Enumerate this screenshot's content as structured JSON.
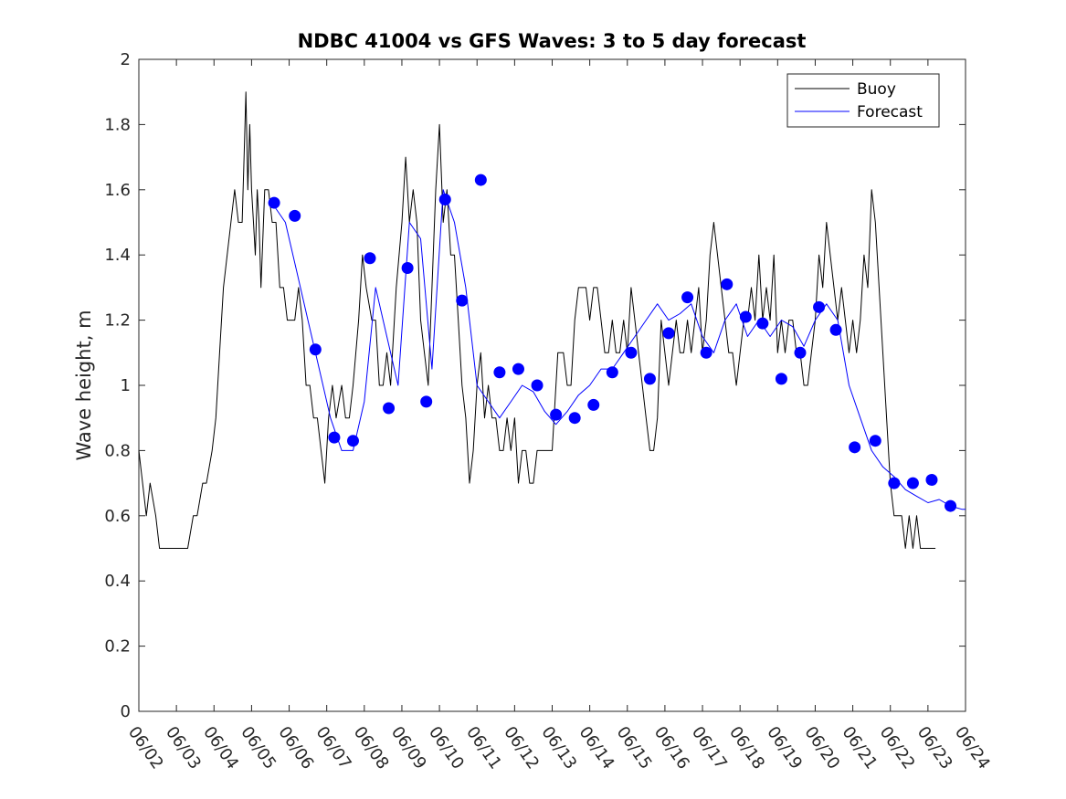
{
  "chart_data": {
    "type": "line",
    "title": "NDBC 41004 vs GFS Waves: 3 to 5 day forecast",
    "xlabel": "",
    "ylabel": "Wave height, m",
    "x_tick_labels": [
      "06/02",
      "06/03",
      "06/04",
      "06/05",
      "06/06",
      "06/07",
      "06/08",
      "06/09",
      "06/10",
      "06/11",
      "06/12",
      "06/13",
      "06/14",
      "06/15",
      "06/16",
      "06/17",
      "06/18",
      "06/19",
      "06/20",
      "06/21",
      "06/22",
      "06/23",
      "06/24"
    ],
    "xlim": [
      0,
      22
    ],
    "ylim": [
      0,
      2
    ],
    "y_ticks": [
      0,
      0.2,
      0.4,
      0.6,
      0.8,
      1,
      1.2,
      1.4,
      1.6,
      1.8,
      2
    ],
    "y_tick_labels": [
      "0",
      "0.2",
      "0.4",
      "0.6",
      "0.8",
      "1",
      "1.2",
      "1.4",
      "1.6",
      "1.8",
      "2"
    ],
    "x_unit_note": "x values are days after 06/02",
    "grid": false,
    "legend": {
      "position": "top-right",
      "entries": [
        {
          "name": "Buoy",
          "color": "#000000"
        },
        {
          "name": "Forecast",
          "color": "#0000ff"
        }
      ]
    },
    "series": [
      {
        "name": "Buoy",
        "color": "#000000",
        "style": "line",
        "x": [
          0,
          0.1,
          0.2,
          0.3,
          0.45,
          0.55,
          0.6,
          0.7,
          1.0,
          1.3,
          1.45,
          1.55,
          1.7,
          1.8,
          1.95,
          2.05,
          2.15,
          2.25,
          2.35,
          2.45,
          2.55,
          2.65,
          2.75,
          2.8,
          2.85,
          2.9,
          2.95,
          3.0,
          3.05,
          3.1,
          3.15,
          3.2,
          3.25,
          3.35,
          3.45,
          3.55,
          3.65,
          3.75,
          3.85,
          3.95,
          4.05,
          4.15,
          4.25,
          4.35,
          4.45,
          4.55,
          4.65,
          4.75,
          4.85,
          4.95,
          5.05,
          5.15,
          5.25,
          5.4,
          5.5,
          5.6,
          5.7,
          5.85,
          5.95,
          6.05,
          6.2,
          6.3,
          6.4,
          6.5,
          6.6,
          6.7,
          6.85,
          7.0,
          7.1,
          7.2,
          7.3,
          7.4,
          7.5,
          7.6,
          7.7,
          7.8,
          7.9,
          8.0,
          8.1,
          8.2,
          8.3,
          8.4,
          8.5,
          8.6,
          8.7,
          8.8,
          8.9,
          9.0,
          9.1,
          9.2,
          9.3,
          9.4,
          9.5,
          9.6,
          9.7,
          9.8,
          9.9,
          10.0,
          10.1,
          10.2,
          10.3,
          10.4,
          10.5,
          10.6,
          10.7,
          10.8,
          10.9,
          11.0,
          11.15,
          11.3,
          11.4,
          11.5,
          11.6,
          11.7,
          11.8,
          11.9,
          12.0,
          12.1,
          12.2,
          12.3,
          12.4,
          12.5,
          12.6,
          12.7,
          12.8,
          12.9,
          13.0,
          13.1,
          13.2,
          13.3,
          13.4,
          13.5,
          13.6,
          13.7,
          13.8,
          13.9,
          14.0,
          14.1,
          14.2,
          14.3,
          14.4,
          14.5,
          14.6,
          14.7,
          14.8,
          14.9,
          15.0,
          15.1,
          15.2,
          15.3,
          15.4,
          15.5,
          15.6,
          15.7,
          15.8,
          15.9,
          16.0,
          16.1,
          16.2,
          16.3,
          16.4,
          16.5,
          16.6,
          16.7,
          16.8,
          16.9,
          17.0,
          17.1,
          17.2,
          17.3,
          17.4,
          17.5,
          17.6,
          17.7,
          17.8,
          17.9,
          18.0,
          18.1,
          18.2,
          18.3,
          18.4,
          18.5,
          18.6,
          18.7,
          18.8,
          18.9,
          19.0,
          19.1,
          19.2,
          19.3,
          19.4,
          19.5,
          19.6,
          19.7,
          19.8,
          19.9,
          20.0,
          20.1,
          20.2,
          20.3,
          20.4,
          20.5,
          20.6,
          20.7,
          20.8,
          20.9,
          21.0,
          21.1,
          21.2
        ],
        "y": [
          0.8,
          0.7,
          0.6,
          0.7,
          0.6,
          0.5,
          0.5,
          0.5,
          0.5,
          0.5,
          0.6,
          0.6,
          0.7,
          0.7,
          0.8,
          0.9,
          1.1,
          1.3,
          1.4,
          1.5,
          1.6,
          1.5,
          1.5,
          1.7,
          1.9,
          1.6,
          1.8,
          1.6,
          1.5,
          1.4,
          1.6,
          1.5,
          1.3,
          1.6,
          1.6,
          1.5,
          1.5,
          1.3,
          1.3,
          1.2,
          1.2,
          1.2,
          1.3,
          1.2,
          1.0,
          1.0,
          0.9,
          0.9,
          0.8,
          0.7,
          0.9,
          1.0,
          0.9,
          1.0,
          0.9,
          0.9,
          1.0,
          1.2,
          1.4,
          1.3,
          1.2,
          1.2,
          1.0,
          1.0,
          1.1,
          1.0,
          1.3,
          1.5,
          1.7,
          1.5,
          1.6,
          1.5,
          1.2,
          1.1,
          1.0,
          1.3,
          1.6,
          1.8,
          1.5,
          1.6,
          1.4,
          1.4,
          1.2,
          1.0,
          0.9,
          0.7,
          0.8,
          1.0,
          1.1,
          0.9,
          1.0,
          0.9,
          0.9,
          0.8,
          0.8,
          0.9,
          0.8,
          0.9,
          0.7,
          0.8,
          0.8,
          0.7,
          0.7,
          0.8,
          0.8,
          0.8,
          0.8,
          0.8,
          1.1,
          1.1,
          1.0,
          1.0,
          1.2,
          1.3,
          1.3,
          1.3,
          1.2,
          1.3,
          1.3,
          1.2,
          1.1,
          1.1,
          1.2,
          1.1,
          1.1,
          1.2,
          1.1,
          1.3,
          1.2,
          1.1,
          1.0,
          0.9,
          0.8,
          0.8,
          0.9,
          1.2,
          1.1,
          1.0,
          1.1,
          1.2,
          1.1,
          1.1,
          1.2,
          1.1,
          1.2,
          1.3,
          1.1,
          1.2,
          1.4,
          1.5,
          1.4,
          1.3,
          1.2,
          1.1,
          1.1,
          1.0,
          1.1,
          1.2,
          1.2,
          1.3,
          1.2,
          1.4,
          1.2,
          1.3,
          1.2,
          1.4,
          1.1,
          1.2,
          1.1,
          1.2,
          1.2,
          1.1,
          1.1,
          1.0,
          1.0,
          1.1,
          1.2,
          1.4,
          1.3,
          1.5,
          1.4,
          1.3,
          1.2,
          1.3,
          1.2,
          1.1,
          1.2,
          1.1,
          1.2,
          1.4,
          1.3,
          1.6,
          1.5,
          1.3,
          1.1,
          0.9,
          0.7,
          0.6,
          0.6,
          0.6,
          0.5,
          0.6,
          0.5,
          0.6,
          0.5,
          0.5,
          0.5,
          0.5,
          0.5
        ]
      },
      {
        "name": "Forecast",
        "color": "#0000ff",
        "style": "line",
        "x": [
          3.6,
          3.9,
          4.2,
          4.5,
          4.8,
          5.1,
          5.4,
          5.7,
          6.0,
          6.3,
          6.6,
          6.9,
          7.2,
          7.5,
          7.8,
          8.1,
          8.4,
          8.7,
          9.0,
          9.3,
          9.6,
          9.9,
          10.2,
          10.5,
          10.8,
          11.1,
          11.4,
          11.7,
          12.0,
          12.3,
          12.6,
          12.9,
          13.2,
          13.5,
          13.8,
          14.1,
          14.4,
          14.7,
          15.0,
          15.3,
          15.6,
          15.9,
          16.2,
          16.5,
          16.8,
          17.1,
          17.4,
          17.7,
          18.0,
          18.3,
          18.6,
          18.9,
          19.2,
          19.5,
          19.8,
          20.1,
          20.4,
          20.7,
          21.0,
          21.3,
          21.6,
          21.9,
          22.0
        ],
        "y": [
          1.55,
          1.5,
          1.35,
          1.2,
          1.05,
          0.9,
          0.8,
          0.8,
          0.95,
          1.3,
          1.15,
          1.0,
          1.5,
          1.45,
          1.05,
          1.6,
          1.5,
          1.3,
          1.0,
          0.95,
          0.9,
          0.95,
          1.0,
          0.98,
          0.92,
          0.88,
          0.92,
          0.97,
          1.0,
          1.05,
          1.05,
          1.1,
          1.15,
          1.2,
          1.25,
          1.2,
          1.22,
          1.25,
          1.15,
          1.1,
          1.2,
          1.25,
          1.15,
          1.2,
          1.15,
          1.2,
          1.18,
          1.12,
          1.2,
          1.25,
          1.2,
          1.0,
          0.9,
          0.8,
          0.75,
          0.72,
          0.68,
          0.66,
          0.64,
          0.65,
          0.63,
          0.62,
          0.62
        ]
      },
      {
        "name": "",
        "color": "#0000ff",
        "style": "markers",
        "x": [
          3.6,
          4.15,
          4.7,
          5.2,
          5.7,
          6.15,
          6.65,
          7.15,
          7.65,
          8.15,
          8.6,
          9.1,
          9.6,
          10.1,
          10.6,
          11.1,
          11.6,
          12.1,
          12.6,
          13.1,
          13.6,
          14.1,
          14.6,
          15.1,
          15.65,
          16.15,
          16.6,
          17.1,
          17.6,
          18.1,
          18.55,
          19.05,
          19.6,
          20.1,
          20.6,
          21.1,
          21.6
        ],
        "y": [
          1.56,
          1.52,
          1.11,
          0.84,
          0.83,
          1.39,
          0.93,
          1.36,
          0.95,
          1.57,
          1.26,
          1.63,
          1.04,
          1.05,
          1.0,
          0.91,
          0.9,
          0.94,
          1.04,
          1.1,
          1.02,
          1.16,
          1.27,
          1.1,
          1.31,
          1.21,
          1.19,
          1.02,
          1.1,
          1.24,
          1.17,
          0.81,
          0.83,
          0.7,
          0.7,
          0.71,
          0.63
        ]
      }
    ]
  }
}
